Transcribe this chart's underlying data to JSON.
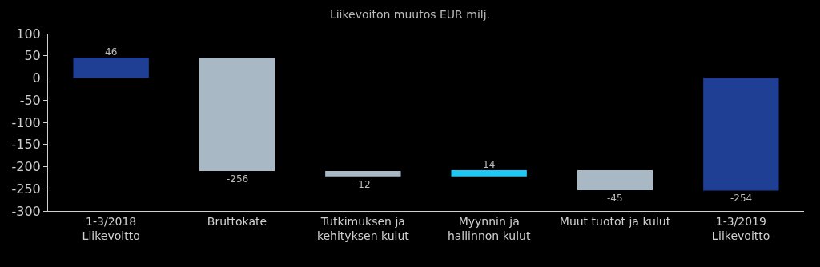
{
  "chart_data": {
    "type": "bar",
    "title": "Liikevoiton muutos EUR milj.",
    "categories": [
      "1-3/2018\nLiikevoitto",
      "Bruttokate",
      "Tutkimuksen ja\nkehityksen kulut",
      "Myynnin ja\nhallinnon kulut",
      "Muut tuotot ja kulut",
      "1-3/2019\nLiikevoitto"
    ],
    "values": [
      46,
      -256,
      -12,
      14,
      -45,
      -254
    ],
    "base": [
      0,
      46,
      -210,
      -222,
      -208,
      0
    ],
    "colors": [
      "#1f3f94",
      "#a8b8c4",
      "#a8b8c4",
      "#1ec8f5",
      "#a8b8c4",
      "#1f3f94"
    ],
    "data_labels": true,
    "ylim": [
      -300,
      100
    ],
    "yticks": [
      -300,
      -250,
      -200,
      -150,
      -100,
      -50,
      0,
      50,
      100
    ],
    "grid": false,
    "legend": false
  }
}
